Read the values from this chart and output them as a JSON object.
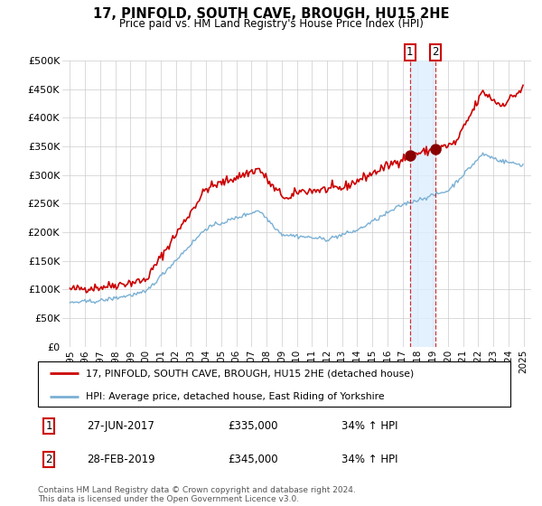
{
  "title": "17, PINFOLD, SOUTH CAVE, BROUGH, HU15 2HE",
  "subtitle": "Price paid vs. HM Land Registry's House Price Index (HPI)",
  "ylabel_ticks": [
    "£0",
    "£50K",
    "£100K",
    "£150K",
    "£200K",
    "£250K",
    "£300K",
    "£350K",
    "£400K",
    "£450K",
    "£500K"
  ],
  "ytick_values": [
    0,
    50000,
    100000,
    150000,
    200000,
    250000,
    300000,
    350000,
    400000,
    450000,
    500000
  ],
  "ylim": [
    0,
    500000
  ],
  "xlim_start": 1994.5,
  "xlim_end": 2025.5,
  "xtick_years": [
    1995,
    1996,
    1997,
    1998,
    1999,
    2000,
    2001,
    2002,
    2003,
    2004,
    2005,
    2006,
    2007,
    2008,
    2009,
    2010,
    2011,
    2012,
    2013,
    2014,
    2015,
    2016,
    2017,
    2018,
    2019,
    2020,
    2021,
    2022,
    2023,
    2024,
    2025
  ],
  "sale1_date": 2017.49,
  "sale1_price": 335000,
  "sale2_date": 2019.16,
  "sale2_price": 345000,
  "property_color": "#cc0000",
  "hpi_color": "#7ab0d4",
  "shade_color": "#ddeeff",
  "sale_marker_color": "#880000",
  "legend_label1": "17, PINFOLD, SOUTH CAVE, BROUGH, HU15 2HE (detached house)",
  "legend_label2": "HPI: Average price, detached house, East Riding of Yorkshire",
  "footer": "Contains HM Land Registry data © Crown copyright and database right 2024.\nThis data is licensed under the Open Government Licence v3.0.",
  "background_color": "#ffffff",
  "grid_color": "#cccccc"
}
